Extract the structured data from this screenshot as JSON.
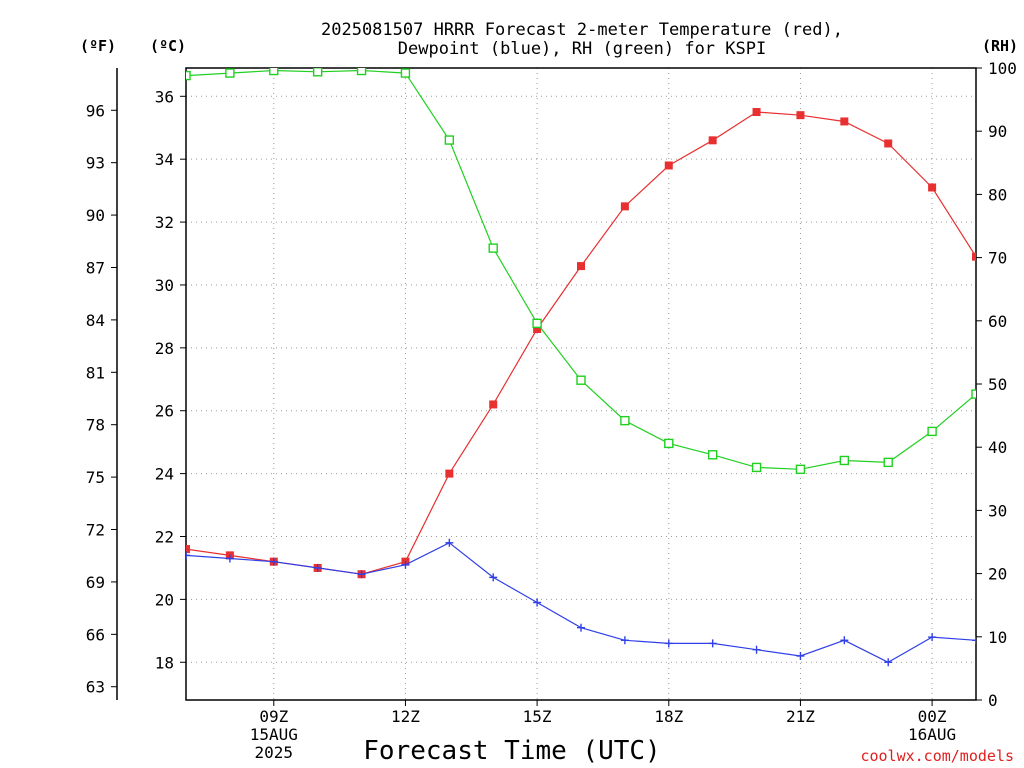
{
  "chart_data": {
    "type": "line",
    "title": "2025081507 HRRR Forecast 2-meter Temperature (red),",
    "subtitle": "Dewpoint (blue), RH (green) for KSPI",
    "xlabel": "Forecast Time (UTC)",
    "credit": "coolwx.com/models",
    "units": {
      "fahrenheit": "(ºF)",
      "celsius": "(ºC)",
      "rh": "(RH)"
    },
    "x_hours_utc": [
      7,
      8,
      9,
      10,
      11,
      12,
      13,
      14,
      15,
      16,
      17,
      18,
      19,
      20,
      21,
      22,
      23,
      24,
      25
    ],
    "x_range": [
      7,
      25
    ],
    "x_ticks": [
      {
        "hour": 9,
        "lines": [
          "09Z",
          "15AUG",
          "2025"
        ]
      },
      {
        "hour": 12,
        "lines": [
          "12Z"
        ]
      },
      {
        "hour": 15,
        "lines": [
          "15Z"
        ]
      },
      {
        "hour": 18,
        "lines": [
          "18Z"
        ]
      },
      {
        "hour": 21,
        "lines": [
          "21Z"
        ]
      },
      {
        "hour": 24,
        "lines": [
          "00Z",
          "16AUG"
        ]
      }
    ],
    "celsius_range": [
      16.8,
      36.9
    ],
    "celsius_ticks": [
      "18",
      "20",
      "22",
      "24",
      "26",
      "28",
      "30",
      "32",
      "34",
      "36"
    ],
    "fahrenheit_ticks": [
      "63",
      "66",
      "69",
      "72",
      "75",
      "78",
      "81",
      "84",
      "87",
      "90",
      "93",
      "96"
    ],
    "rh_range": [
      0,
      100
    ],
    "rh_ticks": [
      "0",
      "10",
      "20",
      "30",
      "40",
      "50",
      "60",
      "70",
      "80",
      "90",
      "100"
    ],
    "series": [
      {
        "key": "temperature",
        "color": "#e83030",
        "marker": "filled-square",
        "axis": "celsius",
        "values": [
          21.6,
          21.4,
          21.2,
          21.0,
          20.8,
          21.2,
          24.0,
          26.2,
          28.6,
          30.6,
          32.5,
          33.8,
          34.6,
          35.5,
          35.4,
          35.2,
          34.5,
          33.1,
          30.9
        ]
      },
      {
        "key": "dewpoint",
        "color": "#3040e8",
        "marker": "plus",
        "axis": "celsius",
        "values": [
          21.4,
          21.3,
          21.2,
          21.0,
          20.8,
          21.1,
          21.8,
          20.7,
          19.9,
          19.1,
          18.7,
          18.6,
          18.6,
          18.4,
          18.2,
          18.7,
          18.0,
          18.8,
          18.7
        ]
      },
      {
        "key": "rh",
        "color": "#20d020",
        "marker": "open-square",
        "axis": "rh",
        "values": [
          98.8,
          99.2,
          99.6,
          99.4,
          99.6,
          99.2,
          88.6,
          71.5,
          59.6,
          50.6,
          44.2,
          40.6,
          38.8,
          36.8,
          36.5,
          37.9,
          37.6,
          42.5,
          48.4
        ]
      }
    ],
    "grid": true
  }
}
